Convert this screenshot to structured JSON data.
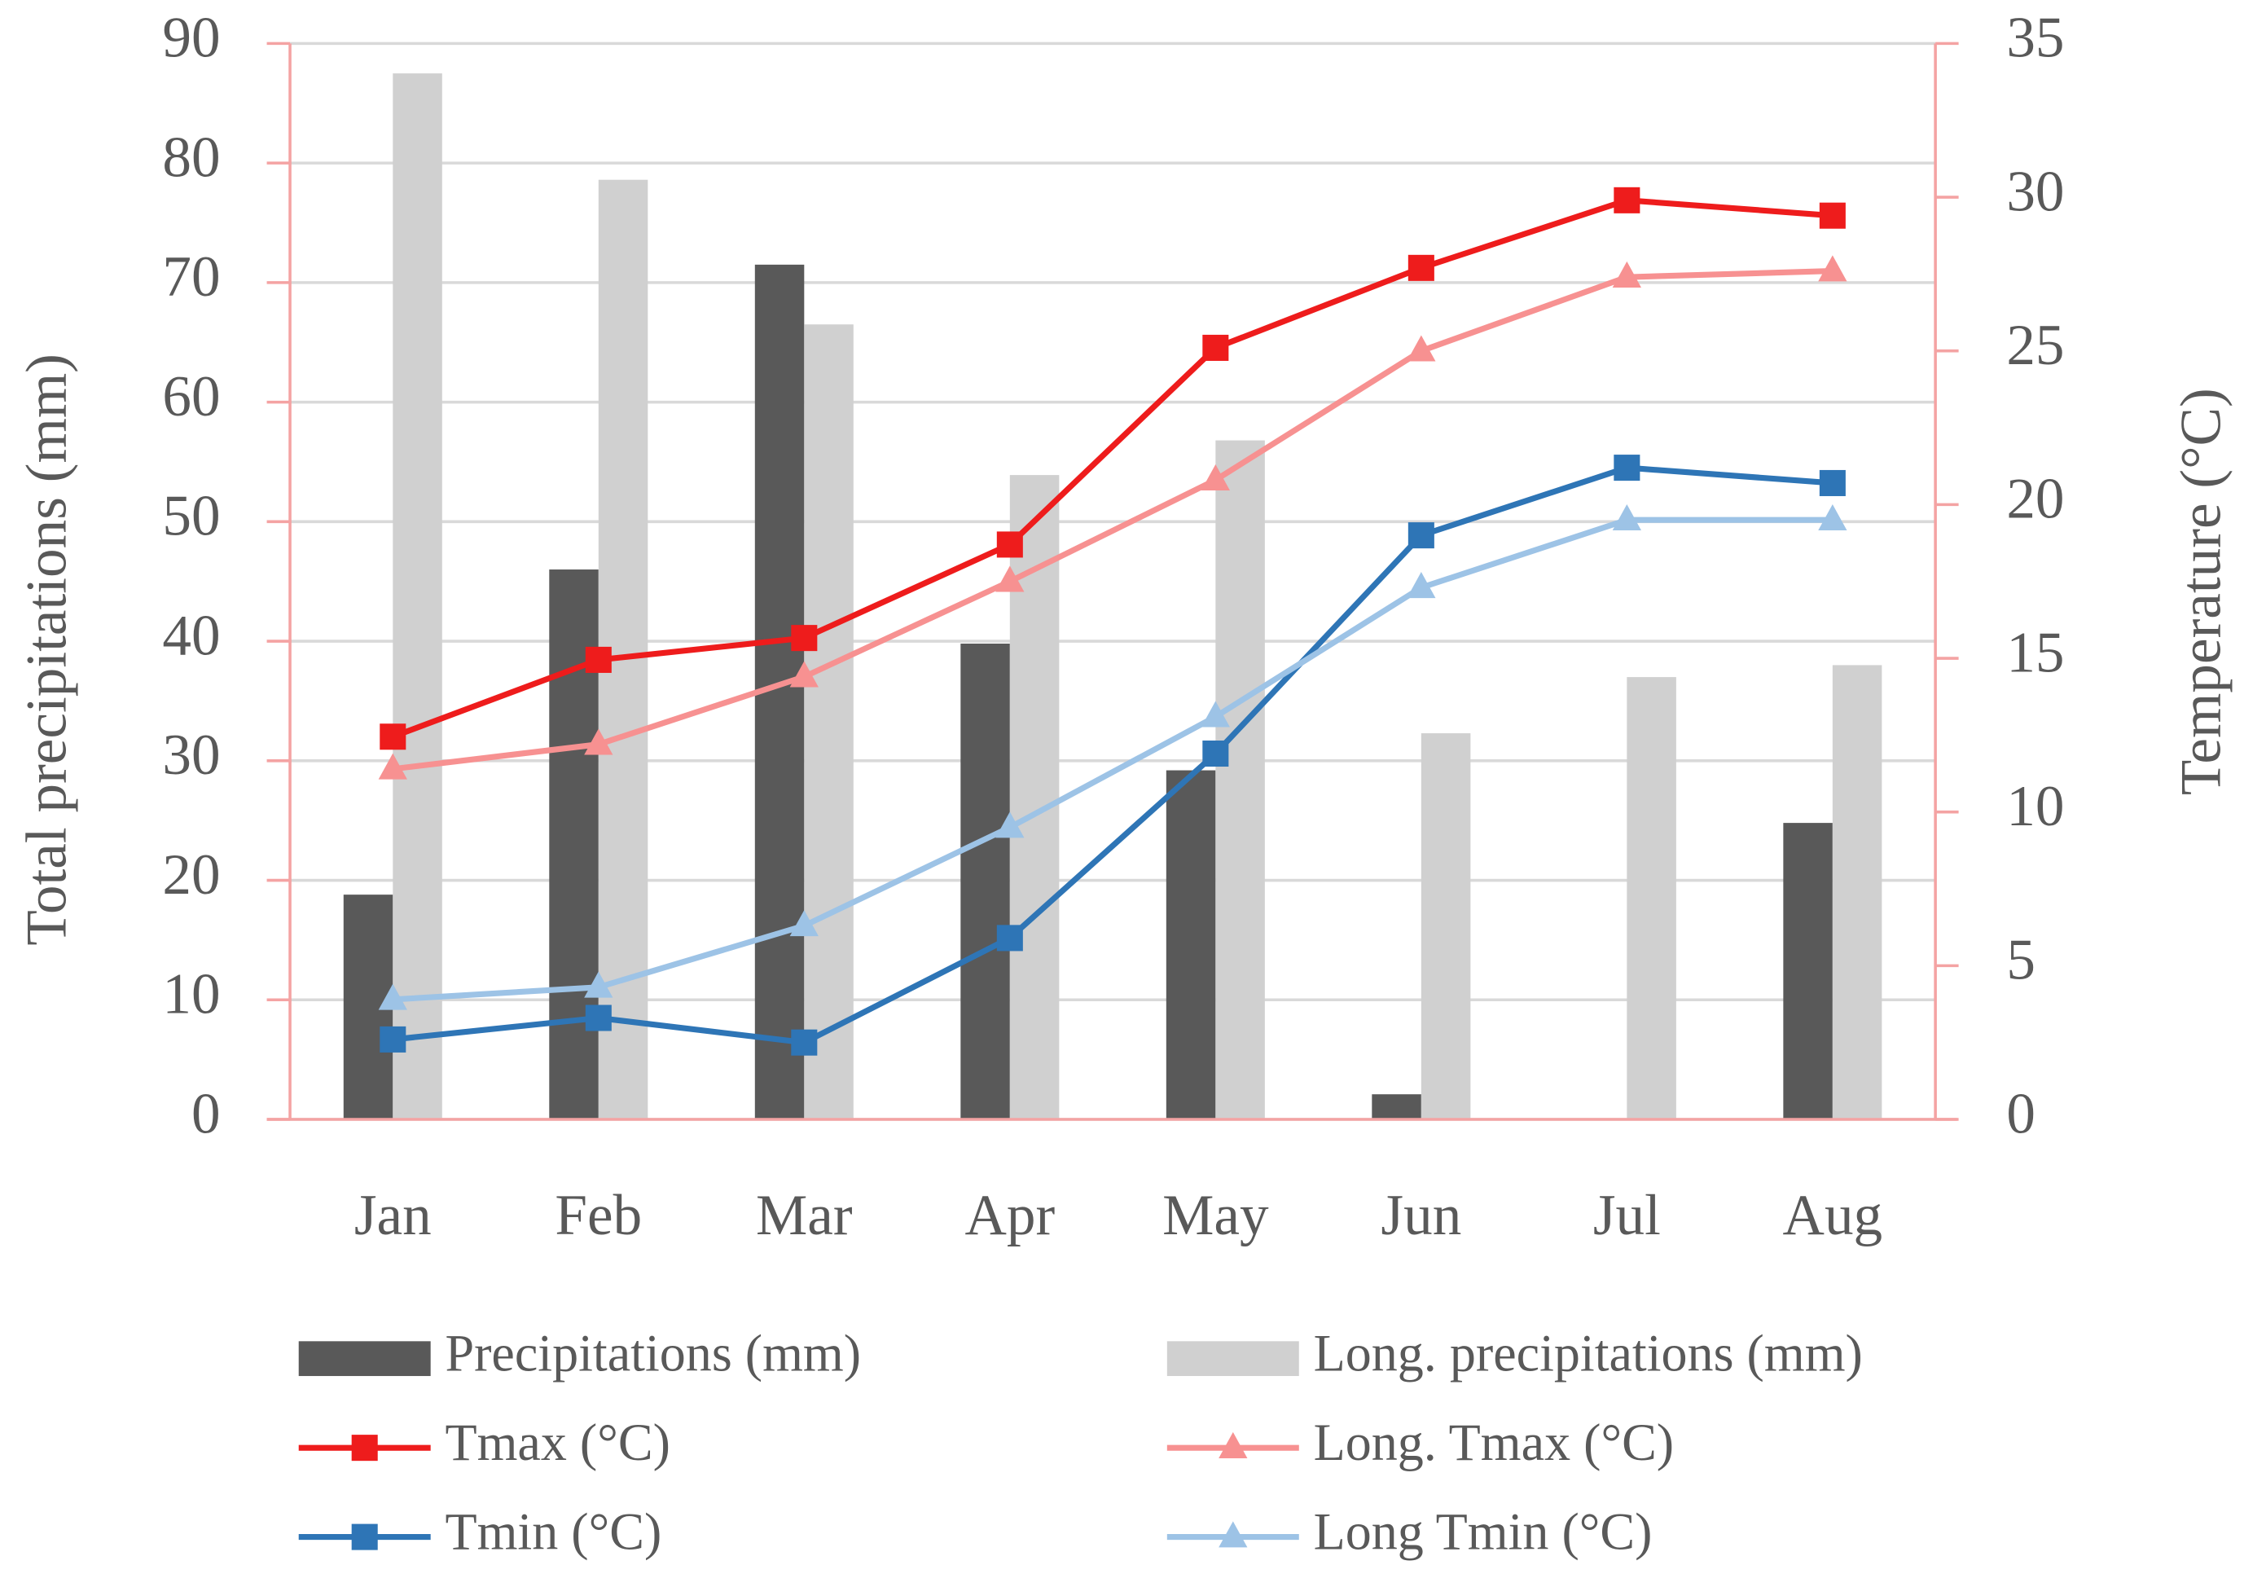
{
  "chart_data": {
    "type": "combo",
    "y_label": "Total precipitations (mm)",
    "y2_label": "Temperature (°C)",
    "categories": [
      "Jan",
      "Feb",
      "Mar",
      "Apr",
      "May",
      "Jun",
      "Jul",
      "Aug"
    ],
    "ylim": [
      0,
      90
    ],
    "yticks": [
      0,
      10,
      20,
      30,
      40,
      50,
      60,
      70,
      80,
      90
    ],
    "y2lim": [
      0,
      35
    ],
    "y2ticks": [
      0,
      5,
      10,
      15,
      20,
      25,
      30,
      35
    ],
    "grid": true,
    "legend": "bottom",
    "series": [
      {
        "name": "Precipitations (mm)",
        "type": "bar",
        "color": "#595959",
        "values": [
          18.8,
          46,
          71.5,
          39.8,
          29.2,
          2.1,
          0,
          24.8
        ]
      },
      {
        "name": "Long. precipitations (mm)",
        "type": "bar",
        "color": "#d0d0d0",
        "values": [
          87.5,
          78.6,
          66.5,
          53.9,
          56.8,
          32.3,
          37,
          38
        ]
      },
      {
        "name": "Tmax (°C)",
        "type": "line",
        "marker": "square",
        "axis": "y2",
        "color": "#ee1c1c",
        "values": [
          12.45,
          14.95,
          15.66,
          18.7,
          25.1,
          27.7,
          29.9,
          29.4
        ]
      },
      {
        "name": "Long. Tmax (°C)",
        "type": "line",
        "marker": "triangle",
        "axis": "y2",
        "color": "#f79191",
        "values": [
          11.4,
          12.2,
          14.4,
          17.5,
          20.8,
          25,
          27.4,
          27.6
        ]
      },
      {
        "name": "Tmin (°C)",
        "type": "line",
        "marker": "square",
        "axis": "y2",
        "color": "#2e75b6",
        "values": [
          2.6,
          3.3,
          2.5,
          5.9,
          11.9,
          19,
          21.2,
          20.7
        ]
      },
      {
        "name": "Long Tmin (°C)",
        "type": "line",
        "marker": "triangle",
        "axis": "y2",
        "color": "#9dc3e6",
        "values": [
          3.9,
          4.3,
          6.3,
          9.5,
          13.1,
          17.3,
          19.5,
          19.5
        ]
      }
    ]
  }
}
